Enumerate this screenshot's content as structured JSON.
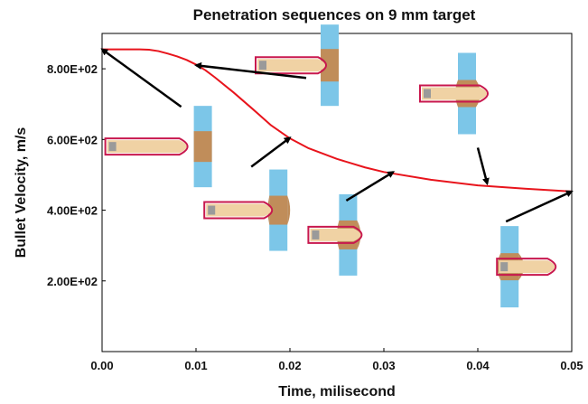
{
  "chart_data": {
    "type": "line",
    "title": "Penetration sequences on 9 mm target",
    "xlabel": "Time, milisecond",
    "ylabel": "Bullet  Velocity, m/s",
    "xlim": [
      0,
      0.05
    ],
    "ylim": [
      0,
      900
    ],
    "x_ticks": [
      "0.00",
      "0.01",
      "0.02",
      "0.03",
      "0.04",
      "0.05"
    ],
    "y_ticks": [
      "2.00E+02",
      "4.00E+02",
      "6.00E+02",
      "8.00E+02"
    ],
    "grid": false,
    "series": [
      {
        "color": "#e8141c",
        "x": [
          0.0,
          0.002,
          0.004,
          0.005,
          0.006,
          0.007,
          0.008,
          0.009,
          0.01,
          0.011,
          0.012,
          0.014,
          0.016,
          0.018,
          0.02,
          0.022,
          0.025,
          0.028,
          0.03,
          0.035,
          0.04,
          0.045,
          0.05
        ],
        "y": [
          855,
          855,
          855,
          854,
          850,
          843,
          835,
          825,
          812,
          796,
          776,
          733,
          687,
          640,
          603,
          575,
          545,
          521,
          508,
          486,
          470,
          461,
          453
        ]
      }
    ],
    "annotations": [
      {
        "kind": "bullet-partial-entry",
        "x": 0.009,
        "y": 580,
        "arrow_to": [
          0.0,
          855
        ]
      },
      {
        "kind": "bullet-mid-penetration",
        "x": 0.025,
        "y": 810,
        "arrow_to": [
          0.01,
          810
        ]
      },
      {
        "kind": "bullet-exit-petaling",
        "x": 0.04,
        "y": 730,
        "arrow_to": [
          0.041,
          475
        ]
      },
      {
        "kind": "bullet-early-penetration",
        "x": 0.018,
        "y": 400,
        "arrow_to": [
          0.02,
          605
        ]
      },
      {
        "kind": "bullet-bulging",
        "x": 0.026,
        "y": 330,
        "arrow_to": [
          0.031,
          508
        ]
      },
      {
        "kind": "bullet-perforated",
        "x": 0.043,
        "y": 240,
        "arrow_to": [
          0.05,
          453
        ]
      }
    ]
  }
}
